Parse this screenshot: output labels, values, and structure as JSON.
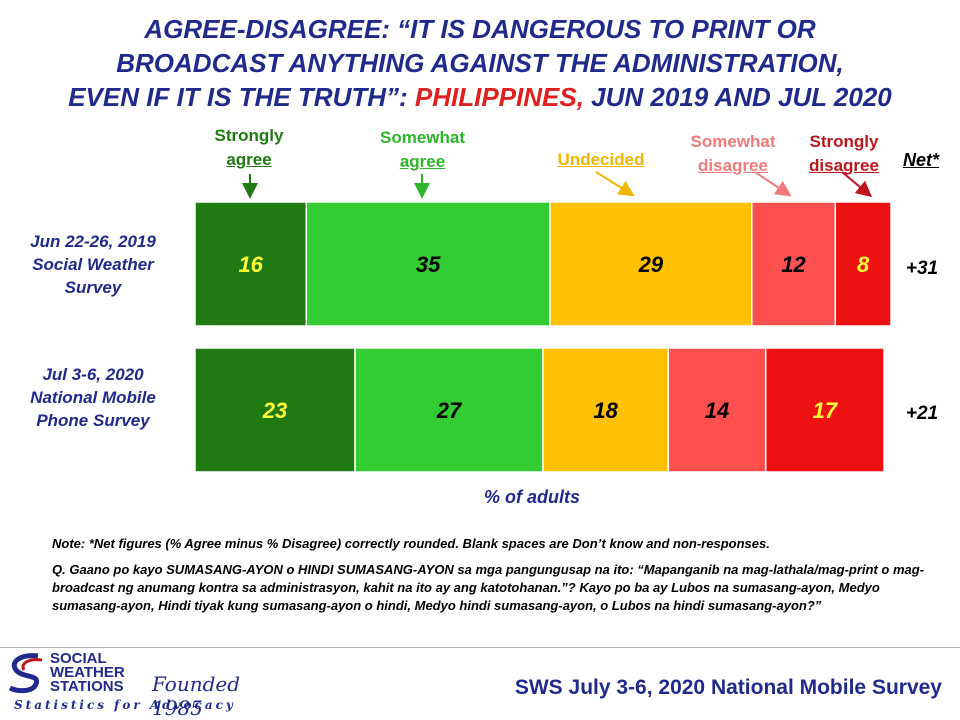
{
  "title": {
    "line1": "AGREE-DISAGREE: “IT IS DANGEROUS TO PRINT OR",
    "line2": "BROADCAST ANYTHING AGAINST THE ADMINISTRATION,",
    "line3_a": "EVEN IF IT IS THE TRUTH”: ",
    "line3_b": "PHILIPPINES,",
    "line3_c": " JUN 2019 AND JUL 2020"
  },
  "categories": {
    "strongly_agree": {
      "l1": "Strongly",
      "l2": "agree",
      "color": "#1f7a12"
    },
    "somewhat_agree": {
      "l1": "Somewhat",
      "l2": "agree",
      "color": "#2fb52a"
    },
    "undecided": {
      "l1": "Undecided",
      "color": "#f2b600"
    },
    "somewhat_disagree": {
      "l1": "Somewhat",
      "l2": "disagree",
      "color": "#f07a7a"
    },
    "strongly_disagree": {
      "l1": "Strongly",
      "l2": "disagree",
      "color": "#c0141c"
    }
  },
  "net_header": "Net*",
  "rows": [
    {
      "l1": "Jun 22-26, 2019",
      "l2": "Social Weather",
      "l3": "Survey",
      "net": "+31"
    },
    {
      "l1": "Jul 3-6, 2020",
      "l2": "National Mobile",
      "l3": "Phone Survey",
      "net": "+21"
    }
  ],
  "x_axis_label": "% of adults",
  "notes": {
    "note1": "Note: *Net figures (% Agree minus % Disagree) correctly rounded. Blank spaces are Don’t know and non-responses.",
    "note2": "Q. Gaano po kayo SUMASANG-AYON o HINDI SUMASANG-AYON sa mga pangungusap na ito: “Mapanganib na mag-lathala/mag-print o mag-broadcast ng anumang kontra sa administrasyon, kahit na ito ay ang katotohanan.”? Kayo po ba ay Lubos na sumasang-ayon, Medyo sumasang-ayon, Hindi tiyak kung sumasang-ayon o hindi, Medyo hindi sumasang-ayon, o Lubos na hindi sumasang-ayon?”"
  },
  "footer": {
    "logo_line1": "SOCIAL",
    "logo_line2": "WEATHER",
    "logo_line3": "STATIONS",
    "founded": "Founded 1985",
    "tagline": "Statistics for Advocacy",
    "source": "SWS July 3-6, 2020 National Mobile Survey"
  },
  "chart_data": {
    "type": "bar",
    "orientation": "horizontal-stacked",
    "categories": [
      "Jun 22-26, 2019 Social Weather Survey",
      "Jul 3-6, 2020 National Mobile Phone Survey"
    ],
    "series": [
      {
        "name": "Strongly agree",
        "values": [
          16,
          23
        ],
        "color": "#1f7a12",
        "label_color": "#ffff33"
      },
      {
        "name": "Somewhat agree",
        "values": [
          35,
          27
        ],
        "color": "#33cc33",
        "label_color": "#000000"
      },
      {
        "name": "Undecided",
        "values": [
          29,
          18
        ],
        "color": "#ffc000",
        "label_color": "#000000"
      },
      {
        "name": "Somewhat disagree",
        "values": [
          12,
          14
        ],
        "color": "#ff5050",
        "label_color": "#000000"
      },
      {
        "name": "Strongly disagree",
        "values": [
          8,
          17
        ],
        "color": "#ee1111",
        "label_color": "#ffff33"
      }
    ],
    "net": [
      "+31",
      "+21"
    ],
    "xlabel": "% of adults",
    "xlim": [
      0,
      100
    ]
  }
}
